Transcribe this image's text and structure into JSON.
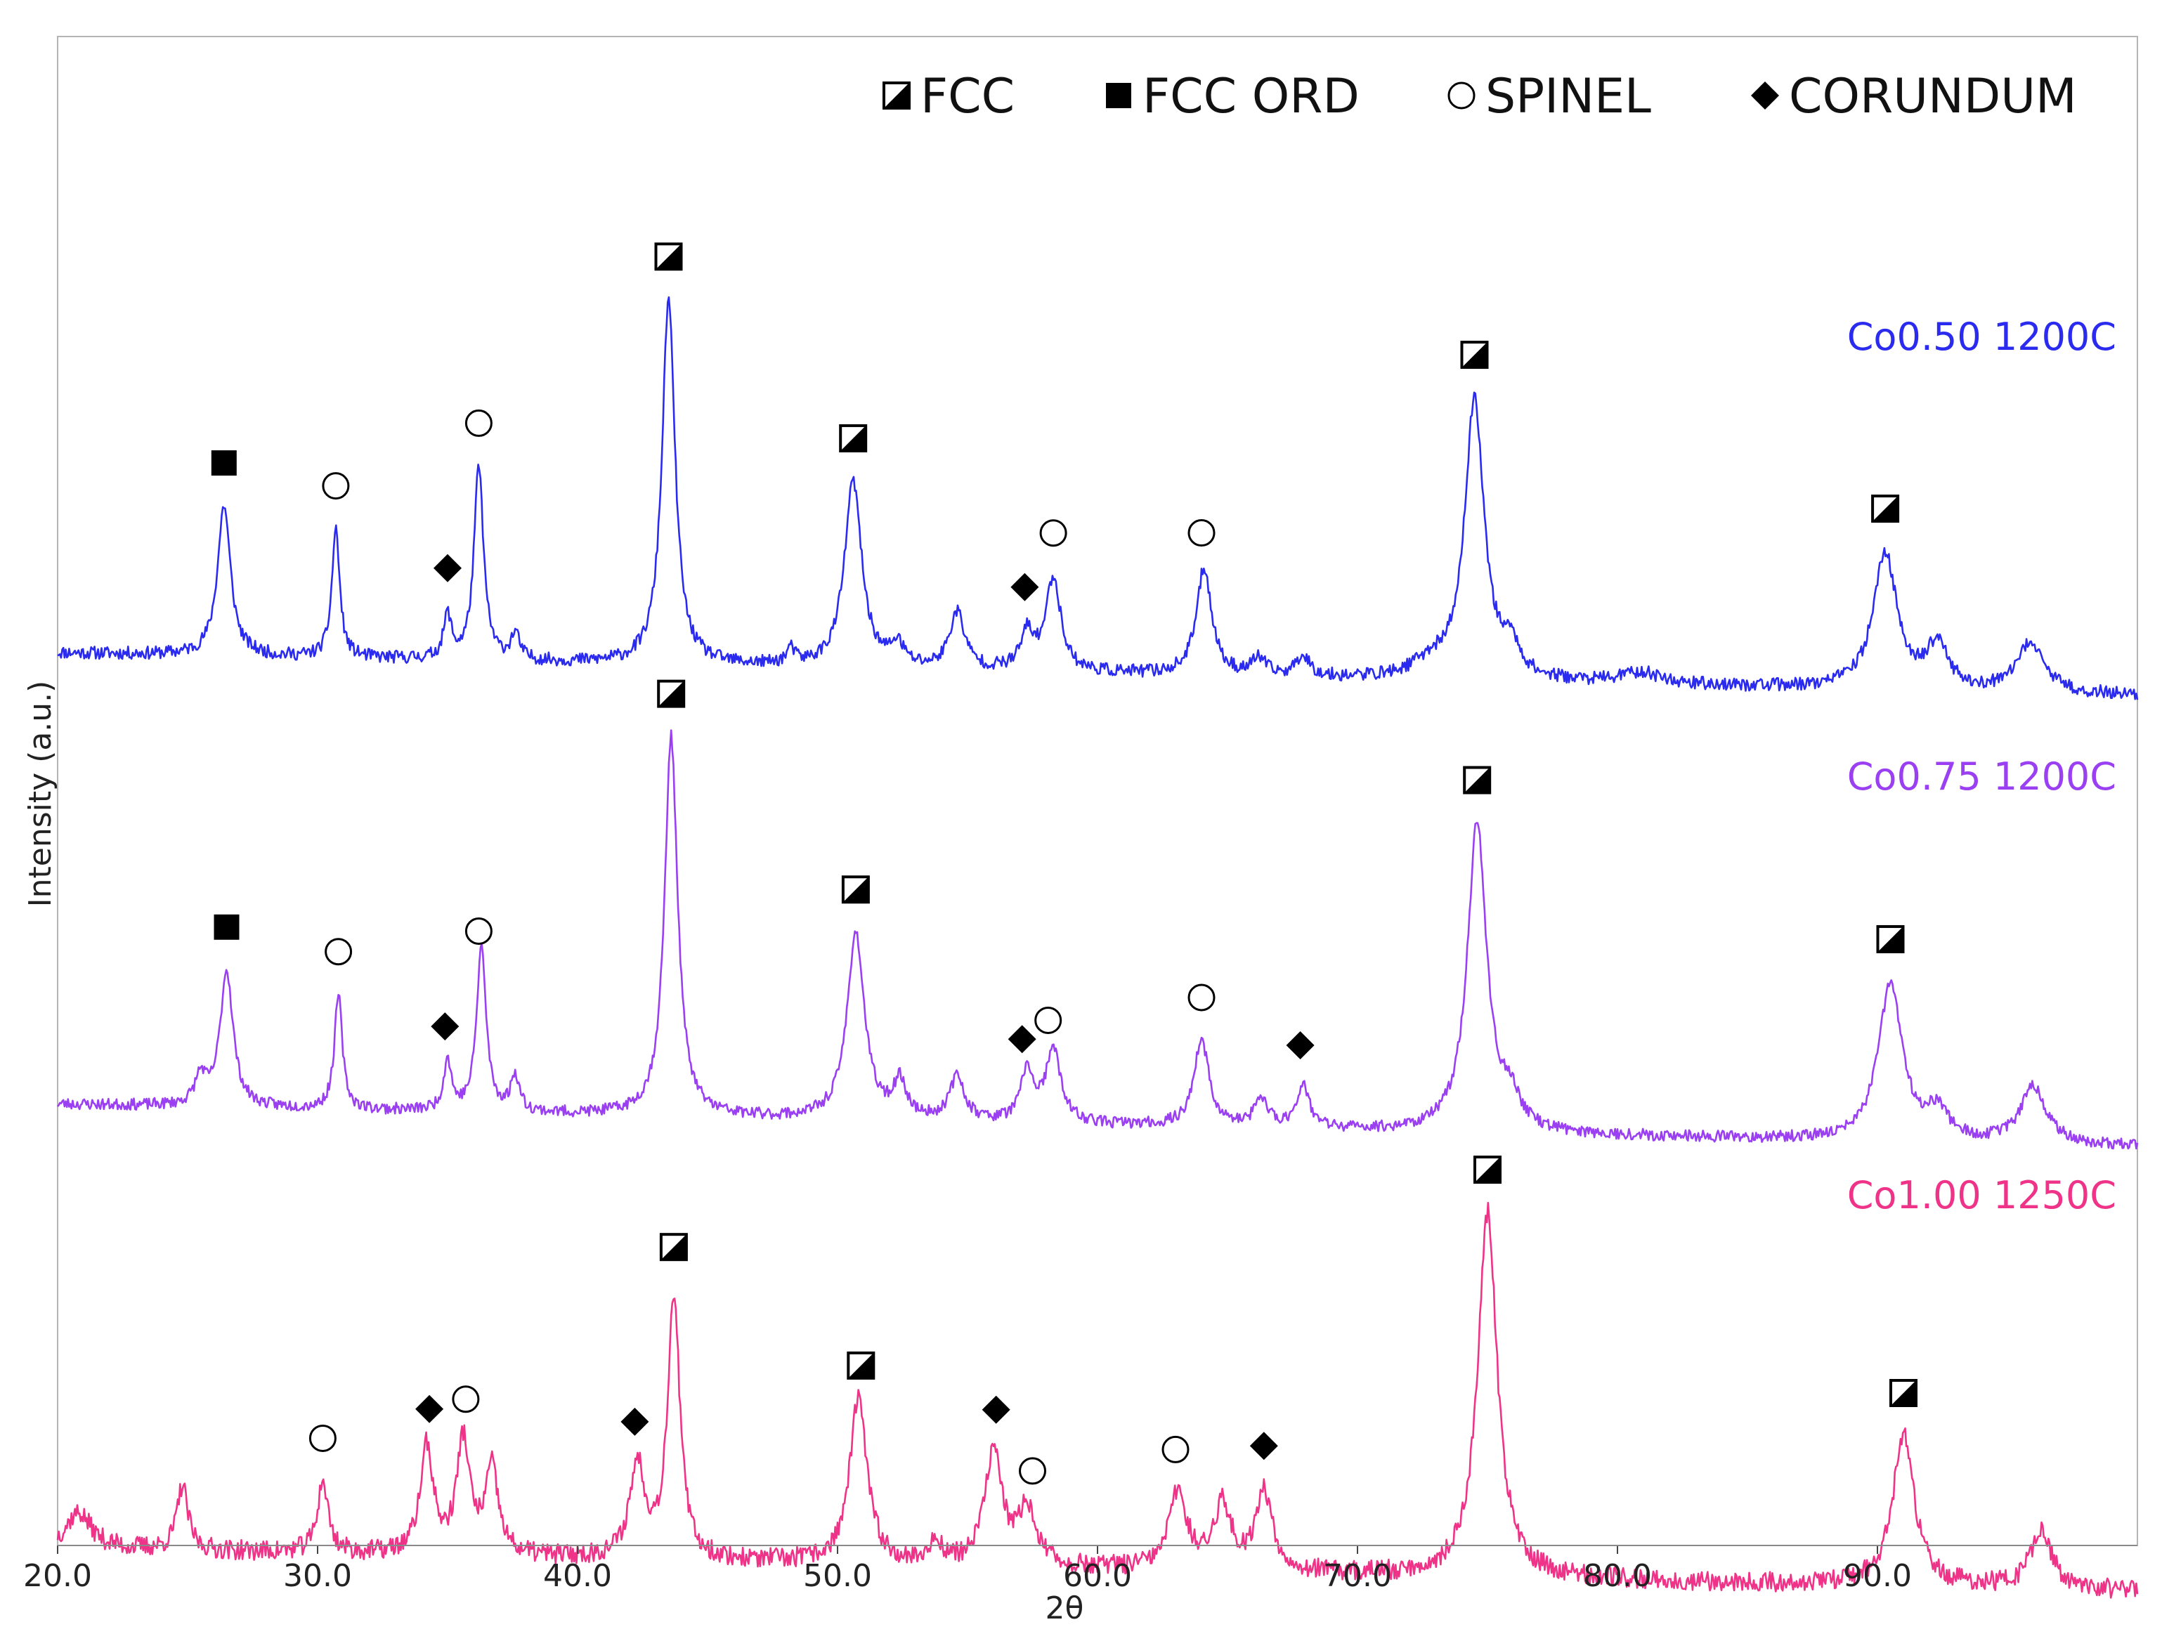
{
  "chart_data": {
    "type": "line",
    "title": "",
    "xlabel": "2θ",
    "ylabel": "Intensity (a.u.)",
    "xlim": [
      20,
      100
    ],
    "x_ticks": [
      "20.0",
      "30.0",
      "40.0",
      "50.0",
      "60.0",
      "70.0",
      "80.0",
      "90.0"
    ],
    "x_tick_values": [
      20,
      30,
      40,
      50,
      60,
      70,
      80,
      90
    ],
    "grid": false,
    "legend_position": "top-right",
    "legend": [
      {
        "symbol": "fcc",
        "label": "FCC"
      },
      {
        "symbol": "fcc-ord",
        "label": "FCC ORD"
      },
      {
        "symbol": "spinel",
        "label": "SPINEL"
      },
      {
        "symbol": "corundum",
        "label": "CORUNDUM"
      }
    ],
    "series": [
      {
        "name": "Co0.50  1200C",
        "color": "#2b2bf0",
        "baseline": 430,
        "step": 30,
        "noise": 9,
        "noise_seed": 11,
        "peaks": [
          [
            26.4,
            105,
            0.3
          ],
          [
            30.7,
            90,
            0.18
          ],
          [
            35.0,
            30,
            0.18
          ],
          [
            36.2,
            135,
            0.22
          ],
          [
            37.6,
            18,
            0.2
          ],
          [
            43.5,
            255,
            0.3
          ],
          [
            48.2,
            10,
            0.2
          ],
          [
            50.6,
            130,
            0.4
          ],
          [
            52.3,
            15,
            0.3
          ],
          [
            54.6,
            40,
            0.35
          ],
          [
            57.3,
            25,
            0.3
          ],
          [
            58.3,
            65,
            0.35
          ],
          [
            64.1,
            75,
            0.35
          ],
          [
            66.2,
            12,
            0.3
          ],
          [
            67.9,
            15,
            0.3
          ],
          [
            72.8,
            10,
            0.8
          ],
          [
            74.5,
            195,
            0.45
          ],
          [
            75.9,
            20,
            0.4
          ],
          [
            80.9,
            8,
            1.0
          ],
          [
            90.3,
            95,
            0.55
          ],
          [
            92.3,
            30,
            0.5
          ],
          [
            95.9,
            35,
            0.6
          ]
        ],
        "markers": [
          {
            "x": 26.4,
            "symbol": "fcc-ord"
          },
          {
            "x": 30.7,
            "symbol": "spinel"
          },
          {
            "x": 35.0,
            "symbol": "corundum"
          },
          {
            "x": 36.2,
            "symbol": "spinel"
          },
          {
            "x": 43.5,
            "symbol": "fcc"
          },
          {
            "x": 50.6,
            "symbol": "fcc"
          },
          {
            "x": 57.2,
            "symbol": "corundum"
          },
          {
            "x": 58.3,
            "symbol": "spinel"
          },
          {
            "x": 64.0,
            "symbol": "spinel"
          },
          {
            "x": 74.5,
            "symbol": "fcc"
          },
          {
            "x": 90.3,
            "symbol": "fcc"
          }
        ]
      },
      {
        "name": "Co0.75  1200C",
        "color": "#9a3ff2",
        "baseline": 745,
        "step": 30,
        "noise": 8,
        "noise_seed": 23,
        "peaks": [
          [
            25.5,
            20,
            0.25
          ],
          [
            26.5,
            95,
            0.3
          ],
          [
            30.8,
            80,
            0.18
          ],
          [
            35.0,
            35,
            0.18
          ],
          [
            36.3,
            115,
            0.22
          ],
          [
            37.6,
            25,
            0.2
          ],
          [
            43.6,
            265,
            0.3
          ],
          [
            50.7,
            130,
            0.4
          ],
          [
            52.4,
            25,
            0.3
          ],
          [
            54.6,
            30,
            0.35
          ],
          [
            57.3,
            35,
            0.3
          ],
          [
            58.3,
            50,
            0.35
          ],
          [
            64.0,
            60,
            0.35
          ],
          [
            66.3,
            20,
            0.3
          ],
          [
            67.9,
            30,
            0.3
          ],
          [
            74.6,
            215,
            0.45
          ],
          [
            75.9,
            20,
            0.4
          ],
          [
            90.5,
            110,
            0.55
          ],
          [
            92.3,
            20,
            0.5
          ],
          [
            96.0,
            40,
            0.6
          ]
        ],
        "markers": [
          {
            "x": 26.5,
            "symbol": "fcc-ord"
          },
          {
            "x": 30.8,
            "symbol": "spinel"
          },
          {
            "x": 34.9,
            "symbol": "corundum"
          },
          {
            "x": 36.2,
            "symbol": "spinel"
          },
          {
            "x": 43.6,
            "symbol": "fcc"
          },
          {
            "x": 50.7,
            "symbol": "fcc"
          },
          {
            "x": 57.1,
            "symbol": "corundum"
          },
          {
            "x": 58.1,
            "symbol": "spinel"
          },
          {
            "x": 64.0,
            "symbol": "spinel"
          },
          {
            "x": 67.8,
            "symbol": "corundum"
          },
          {
            "x": 74.6,
            "symbol": "fcc"
          },
          {
            "x": 90.5,
            "symbol": "fcc"
          }
        ]
      },
      {
        "name": "Co1.00  1250C",
        "color": "#ee3388",
        "baseline": 1055,
        "step": 30,
        "noise": 14,
        "noise_seed": 37,
        "peaks": [
          [
            20.8,
            25,
            0.6
          ],
          [
            24.8,
            45,
            0.25
          ],
          [
            30.2,
            50,
            0.25
          ],
          [
            34.2,
            75,
            0.3
          ],
          [
            35.6,
            80,
            0.3
          ],
          [
            36.7,
            60,
            0.3
          ],
          [
            42.3,
            65,
            0.35
          ],
          [
            43.7,
            185,
            0.28
          ],
          [
            50.8,
            115,
            0.4
          ],
          [
            53.8,
            15,
            0.3
          ],
          [
            56.0,
            80,
            0.4
          ],
          [
            57.3,
            40,
            0.4
          ],
          [
            63.1,
            55,
            0.4
          ],
          [
            64.8,
            45,
            0.4
          ],
          [
            66.4,
            55,
            0.4
          ],
          [
            75.0,
            255,
            0.45
          ],
          [
            91.0,
            105,
            0.5
          ],
          [
            96.3,
            40,
            0.5
          ]
        ],
        "markers": [
          {
            "x": 30.2,
            "symbol": "spinel"
          },
          {
            "x": 34.3,
            "symbol": "corundum"
          },
          {
            "x": 35.7,
            "symbol": "spinel"
          },
          {
            "x": 42.2,
            "symbol": "corundum"
          },
          {
            "x": 43.7,
            "symbol": "fcc"
          },
          {
            "x": 50.9,
            "symbol": "fcc"
          },
          {
            "x": 56.1,
            "symbol": "corundum"
          },
          {
            "x": 57.5,
            "symbol": "spinel"
          },
          {
            "x": 63.0,
            "symbol": "spinel"
          },
          {
            "x": 66.4,
            "symbol": "corundum"
          },
          {
            "x": 75.0,
            "symbol": "fcc"
          },
          {
            "x": 91.0,
            "symbol": "fcc"
          }
        ]
      }
    ]
  }
}
